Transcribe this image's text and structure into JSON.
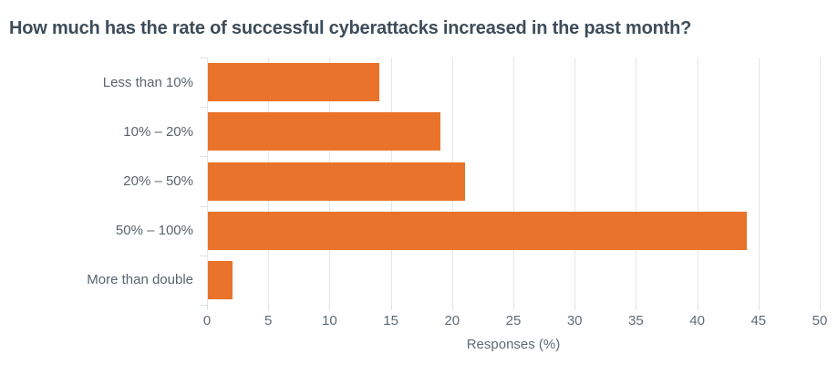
{
  "chart_data": {
    "type": "bar",
    "orientation": "horizontal",
    "title": "How much has the rate of successful cyberattacks increased in the past month?",
    "categories": [
      "Less than 10%",
      "10% – 20%",
      "20% – 50%",
      "50% – 100%",
      "More than double"
    ],
    "values": [
      14,
      19,
      21,
      44,
      2
    ],
    "xlabel": "Responses (%)",
    "ylabel": "",
    "xlim": [
      0,
      50
    ],
    "xticks": [
      0,
      5,
      10,
      15,
      20,
      25,
      30,
      35,
      40,
      45,
      50
    ],
    "grid": true,
    "legend": false,
    "colors": {
      "bar": "#e9732b",
      "title": "#3e4c59",
      "category_label": "#59646d",
      "tick_label": "#5e6b76",
      "gridline": "#e6e6e6",
      "axis_tick": "#d9e0e6"
    }
  }
}
